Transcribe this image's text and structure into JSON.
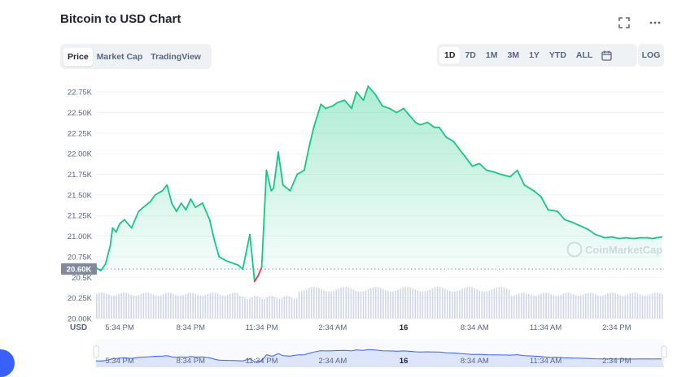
{
  "header": {
    "title": "Bitcoin to USD Chart"
  },
  "icons": {
    "fullscreen": "fullscreen-icon",
    "more": "more-options-icon",
    "calendar": "calendar-icon"
  },
  "view_tabs": [
    {
      "label": "Price",
      "active": true
    },
    {
      "label": "Market Cap",
      "active": false
    },
    {
      "label": "TradingView",
      "active": false
    }
  ],
  "range_tabs": [
    {
      "label": "1D",
      "active": true
    },
    {
      "label": "7D",
      "active": false
    },
    {
      "label": "1M",
      "active": false
    },
    {
      "label": "3M",
      "active": false
    },
    {
      "label": "1Y",
      "active": false
    },
    {
      "label": "YTD",
      "active": false
    },
    {
      "label": "ALL",
      "active": false
    }
  ],
  "log_label": "LOG",
  "colors": {
    "up": "#16c784",
    "down": "#ea3943",
    "grid": "#eff2f5",
    "axis_text": "#58667e",
    "volume": "#cfd6e4",
    "navigator_line": "#3861fb",
    "navigator_fill": "#dde5fb"
  },
  "chart_data": {
    "type": "line",
    "watermark": "CoinMarketCap",
    "ylim": [
      20.0,
      22.85
    ],
    "y_unit_suffix": "K",
    "y_ticks": [
      "22.75K",
      "22.50K",
      "22.25K",
      "22.00K",
      "21.75K",
      "21.50K",
      "21.25K",
      "21.00K",
      "20.75K",
      "20.5K",
      "20.25K",
      "20.00K"
    ],
    "y_tick_values": [
      22.75,
      22.5,
      22.25,
      22.0,
      21.75,
      21.5,
      21.25,
      21.0,
      20.75,
      20.5,
      20.25,
      20.0
    ],
    "x_ticks": [
      "5:34 PM",
      "8:34 PM",
      "11:34 PM",
      "2:34 AM",
      "16",
      "8:34 AM",
      "11:34 AM",
      "2:34 PM"
    ],
    "x_tick_values": [
      0.5,
      3.5,
      6.5,
      9.5,
      12.5,
      15.5,
      18.5,
      21.5
    ],
    "x_axis_label": "USD",
    "xlim": [
      -0.5,
      23.5
    ],
    "reference": {
      "value": 20.6,
      "label": "20.60K"
    },
    "x": [
      -0.5,
      -0.3,
      -0.1,
      0.1,
      0.2,
      0.35,
      0.5,
      0.7,
      1.0,
      1.3,
      1.5,
      1.8,
      2.0,
      2.3,
      2.5,
      2.7,
      2.9,
      3.1,
      3.3,
      3.5,
      3.7,
      4.0,
      4.3,
      4.5,
      4.7,
      5.0,
      5.2,
      5.5,
      5.7,
      6.0,
      6.2,
      6.35,
      6.5,
      6.7,
      6.9,
      7.0,
      7.2,
      7.4,
      7.7,
      8.0,
      8.3,
      8.5,
      8.7,
      9.0,
      9.2,
      9.5,
      9.7,
      10.0,
      10.3,
      10.5,
      10.8,
      11.0,
      11.3,
      11.6,
      11.9,
      12.2,
      12.5,
      12.7,
      13.0,
      13.2,
      13.5,
      13.8,
      14.0,
      14.3,
      14.6,
      15.0,
      15.4,
      15.7,
      16.0,
      16.3,
      16.6,
      17.0,
      17.3,
      17.6,
      18.0,
      18.3,
      18.6,
      19.0,
      19.3,
      19.6,
      20.0,
      20.3,
      20.6,
      21.0,
      21.3,
      21.6,
      21.9,
      22.2,
      22.5,
      22.8,
      23.0,
      23.2,
      23.4
    ],
    "values": [
      20.62,
      20.58,
      20.66,
      20.88,
      21.1,
      21.05,
      21.15,
      21.2,
      21.1,
      21.3,
      21.35,
      21.42,
      21.5,
      21.55,
      21.62,
      21.4,
      21.3,
      21.4,
      21.32,
      21.45,
      21.35,
      21.4,
      21.2,
      20.95,
      20.75,
      20.7,
      20.68,
      20.65,
      20.6,
      21.02,
      20.45,
      20.52,
      20.62,
      21.8,
      21.55,
      21.58,
      22.02,
      21.62,
      21.55,
      21.75,
      21.8,
      22.08,
      22.32,
      22.6,
      22.55,
      22.58,
      22.62,
      22.65,
      22.55,
      22.75,
      22.65,
      22.82,
      22.72,
      22.58,
      22.55,
      22.5,
      22.55,
      22.48,
      22.38,
      22.35,
      22.38,
      22.32,
      22.32,
      22.2,
      22.15,
      22.0,
      21.85,
      21.88,
      21.8,
      21.78,
      21.75,
      21.72,
      21.8,
      21.62,
      21.55,
      21.48,
      21.32,
      21.3,
      21.2,
      21.17,
      21.12,
      21.08,
      21.02,
      20.98,
      20.99,
      20.97,
      20.98,
      20.97,
      20.98,
      20.98,
      20.97,
      20.98,
      20.99
    ],
    "navigator_ticks": [
      "5:34 PM",
      "8:34 PM",
      "11:34 PM",
      "2:34 AM",
      "16",
      "8:34 AM",
      "11:34 AM",
      "2:34 PM"
    ]
  }
}
